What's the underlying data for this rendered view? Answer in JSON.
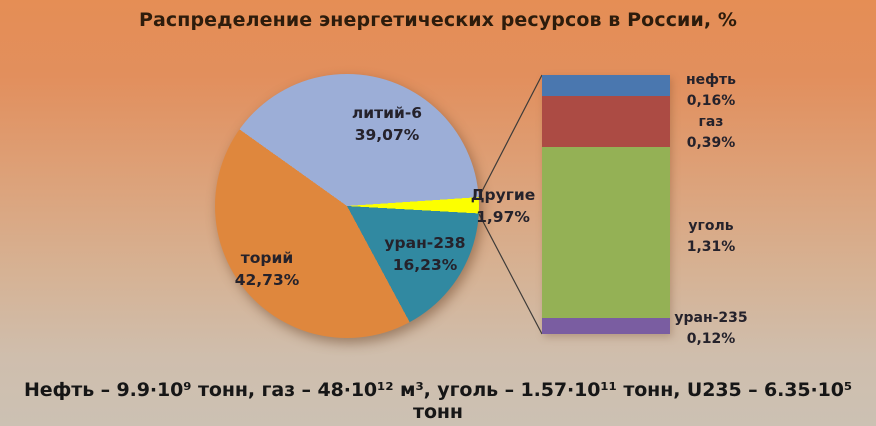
{
  "title": "Распределение энергетических ресурсов в России, %",
  "footer": "Нефть – 9.9·10⁹ тонн, газ – 48·10¹² м³, уголь – 1.57·10¹¹ тонн, U235 – 6.35·10⁵ тонн",
  "chart_data": {
    "type": "pie",
    "variant": "pie-of-pie",
    "title": "Распределение энергетических ресурсов в России, %",
    "start_angle_deg": 305.5,
    "slices": [
      {
        "label": "литий-6",
        "value": 39.07,
        "display": "39,07%",
        "color": "#9CAED7"
      },
      {
        "label": "Другие",
        "value": 1.97,
        "display": "1,97%",
        "color": "#FCFF00"
      },
      {
        "label": "уран-238",
        "value": 16.23,
        "display": "16,23%",
        "color": "#3189A1"
      },
      {
        "label": "торий",
        "value": 42.73,
        "display": "42,73%",
        "color": "#DF873D"
      }
    ],
    "breakdown": [
      {
        "label": "нефть",
        "value": 0.16,
        "display": "0,16%",
        "color": "#4A77AF"
      },
      {
        "label": "газ",
        "value": 0.39,
        "display": "0,39%",
        "color": "#AC4B44"
      },
      {
        "label": "уголь",
        "value": 1.31,
        "display": "1,31%",
        "color": "#94B155"
      },
      {
        "label": "уран-235",
        "value": 0.12,
        "display": "0,12%",
        "color": "#7A5DA1"
      }
    ],
    "annotation": "Нефть – 9.9·10⁹ тонн, газ – 48·10¹² м³, уголь – 1.57·10¹¹ тонн, U235 – 6.35·10⁵ тонн",
    "legend": "none",
    "grid": false
  }
}
